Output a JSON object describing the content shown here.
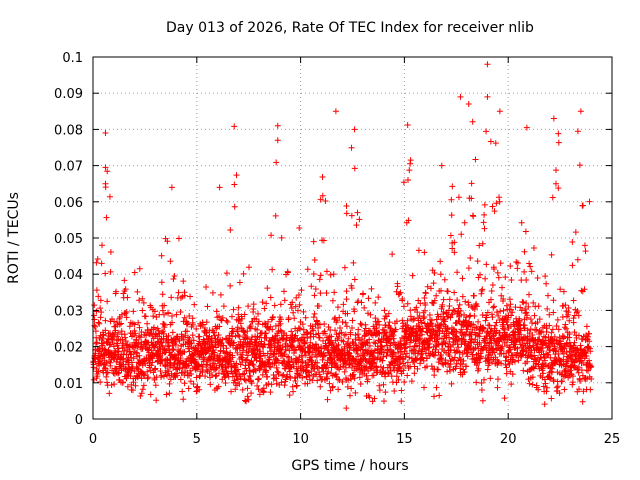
{
  "chart_data": {
    "type": "scatter",
    "title": "Day 013 of 2026, Rate Of TEC Index for receiver nlib",
    "xlabel": "GPS time / hours",
    "ylabel": "ROTI / TECUs",
    "xlim": [
      0,
      25
    ],
    "ylim": [
      0,
      0.1
    ],
    "x_ticks": [
      "0",
      "5",
      "10",
      "15",
      "20",
      "25"
    ],
    "y_ticks": [
      "0",
      "0.01",
      "0.02",
      "0.03",
      "0.04",
      "0.05",
      "0.06",
      "0.07",
      "0.08",
      "0.09",
      "0.1"
    ],
    "grid": true,
    "marker": "+",
    "color": "#ff0000",
    "notable_points": [
      {
        "x": 0.6,
        "y": 0.079
      },
      {
        "x": 0.6,
        "y": 0.0695
      },
      {
        "x": 0.6,
        "y": 0.065
      },
      {
        "x": 3.8,
        "y": 0.064
      },
      {
        "x": 6.1,
        "y": 0.064
      },
      {
        "x": 8.9,
        "y": 0.081
      },
      {
        "x": 8.9,
        "y": 0.077
      },
      {
        "x": 11.7,
        "y": 0.085
      },
      {
        "x": 12.6,
        "y": 0.08
      },
      {
        "x": 15.3,
        "y": 0.0715
      },
      {
        "x": 16.8,
        "y": 0.07
      },
      {
        "x": 17.7,
        "y": 0.089
      },
      {
        "x": 18.1,
        "y": 0.087
      },
      {
        "x": 19.0,
        "y": 0.098
      },
      {
        "x": 19.0,
        "y": 0.089
      },
      {
        "x": 19.6,
        "y": 0.085
      },
      {
        "x": 20.9,
        "y": 0.0805
      },
      {
        "x": 22.2,
        "y": 0.083
      },
      {
        "x": 23.5,
        "y": 0.085
      },
      {
        "x": 12.2,
        "y": 0.003
      }
    ],
    "point_count_estimate": 3500
  }
}
